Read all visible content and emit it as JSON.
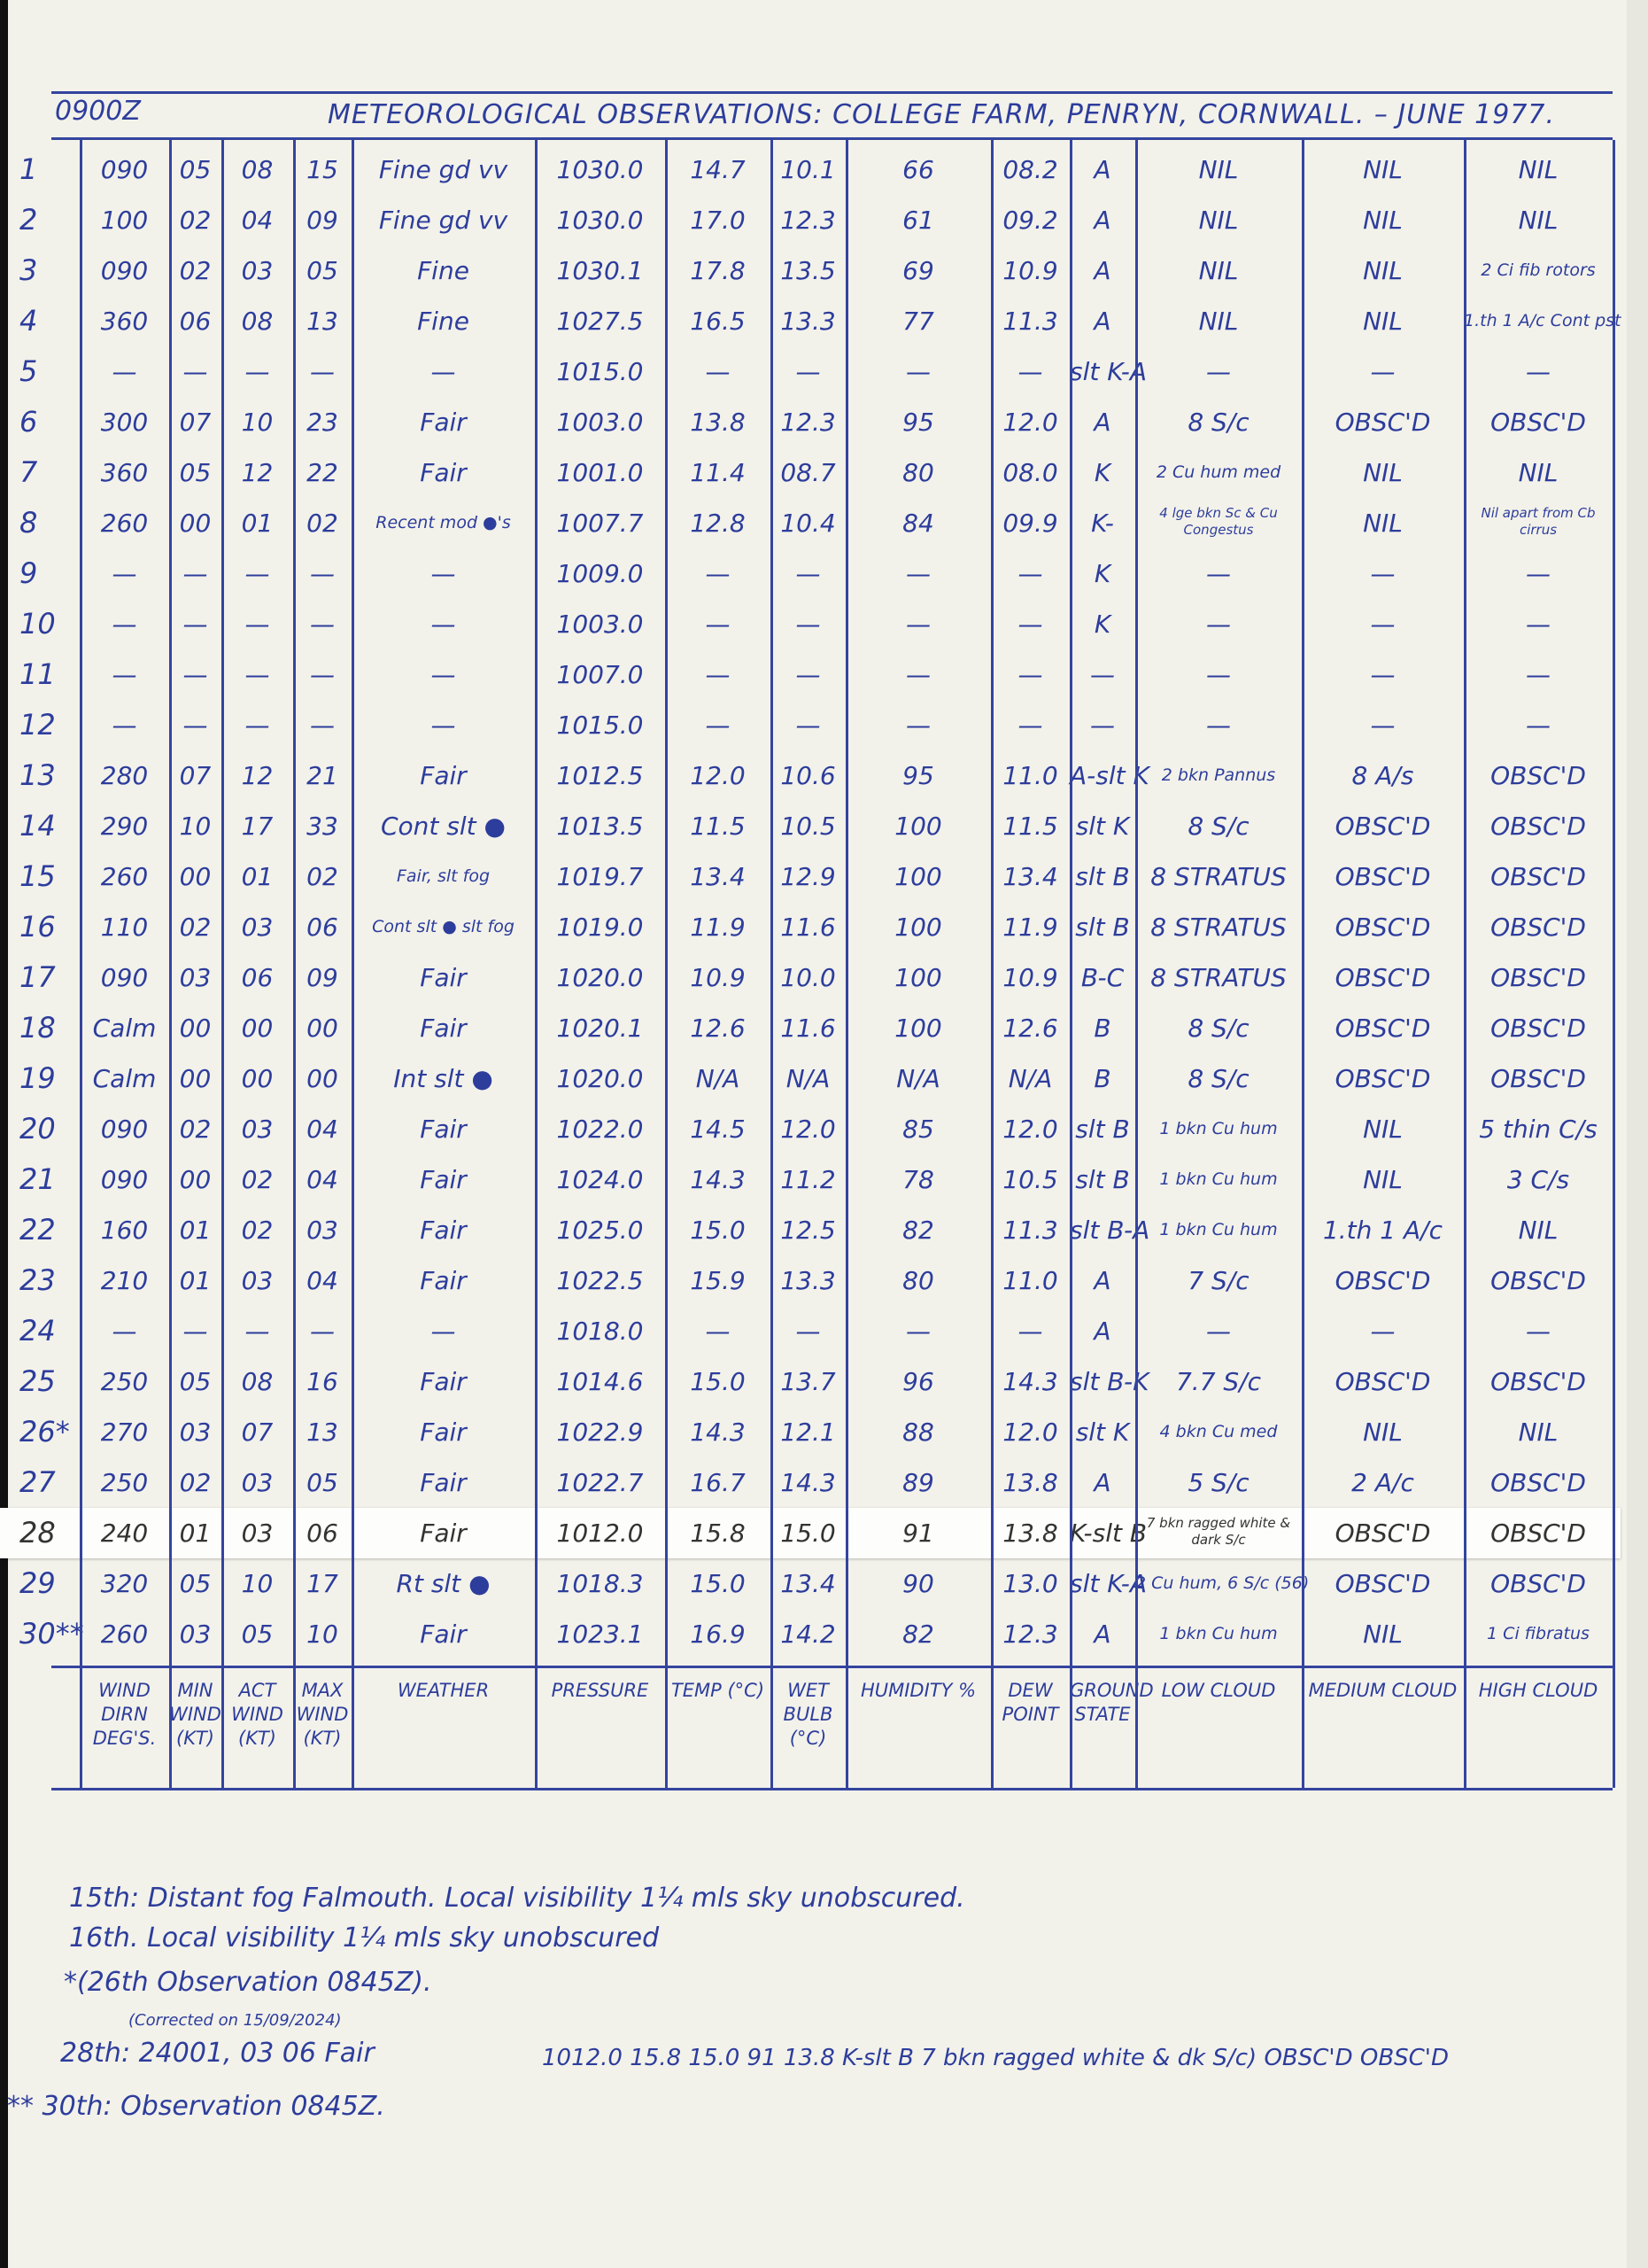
{
  "header": {
    "time": "0900Z",
    "title": "METEOROLOGICAL OBSERVATIONS: COLLEGE FARM, PENRYN, CORNWALL. – JUNE 1977."
  },
  "columns": [
    "WIND DIRN DEG'S.",
    "MIN WIND (KT)",
    "ACT WIND (KT)",
    "MAX WIND (KT)",
    "WEATHER",
    "PRESSURE",
    "TEMP (°C)",
    "WET BULB (°C)",
    "HUMIDITY %",
    "DEW POINT",
    "GROUND STATE",
    "LOW CLOUD",
    "MEDIUM CLOUD",
    "HIGH CLOUD"
  ],
  "rows": [
    [
      "1",
      "090",
      "05",
      "08",
      "15",
      "Fine gd vv",
      "1030.0",
      "14.7",
      "10.1",
      "66",
      "08.2",
      "A",
      "NIL",
      "NIL",
      "NIL"
    ],
    [
      "2",
      "100",
      "02",
      "04",
      "09",
      "Fine gd vv",
      "1030.0",
      "17.0",
      "12.3",
      "61",
      "09.2",
      "A",
      "NIL",
      "NIL",
      "NIL"
    ],
    [
      "3",
      "090",
      "02",
      "03",
      "05",
      "Fine",
      "1030.1",
      "17.8",
      "13.5",
      "69",
      "10.9",
      "A",
      "NIL",
      "NIL",
      "2 Ci fib rotors"
    ],
    [
      "4",
      "360",
      "06",
      "08",
      "13",
      "Fine",
      "1027.5",
      "16.5",
      "13.3",
      "77",
      "11.3",
      "A",
      "NIL",
      "NIL",
      "1.th 1 A/c Cont pst"
    ],
    [
      "5",
      "—",
      "—",
      "—",
      "—",
      "—",
      "1015.0",
      "—",
      "—",
      "—",
      "—",
      "slt K-A",
      "—",
      "—",
      "—"
    ],
    [
      "6",
      "300",
      "07",
      "10",
      "23",
      "Fair",
      "1003.0",
      "13.8",
      "12.3",
      "95",
      "12.0",
      "A",
      "8 S/c",
      "OBSC'D",
      "OBSC'D"
    ],
    [
      "7",
      "360",
      "05",
      "12",
      "22",
      "Fair",
      "1001.0",
      "11.4",
      "08.7",
      "80",
      "08.0",
      "K",
      "2 Cu hum med",
      "NIL",
      "NIL"
    ],
    [
      "8",
      "260",
      "00",
      "01",
      "02",
      "Recent mod ●'s",
      "1007.7",
      "12.8",
      "10.4",
      "84",
      "09.9",
      "K-",
      "4 lge bkn Sc & Cu Congestus",
      "NIL",
      "Nil apart from Cb cirrus"
    ],
    [
      "9",
      "—",
      "—",
      "—",
      "—",
      "—",
      "1009.0",
      "—",
      "—",
      "—",
      "—",
      "K",
      "—",
      "—",
      "—"
    ],
    [
      "10",
      "—",
      "—",
      "—",
      "—",
      "—",
      "1003.0",
      "—",
      "—",
      "—",
      "—",
      "K",
      "—",
      "—",
      "—"
    ],
    [
      "11",
      "—",
      "—",
      "—",
      "—",
      "—",
      "1007.0",
      "—",
      "—",
      "—",
      "—",
      "—",
      "—",
      "—",
      "—"
    ],
    [
      "12",
      "—",
      "—",
      "—",
      "—",
      "—",
      "1015.0",
      "—",
      "—",
      "—",
      "—",
      "—",
      "—",
      "—",
      "—"
    ],
    [
      "13",
      "280",
      "07",
      "12",
      "21",
      "Fair",
      "1012.5",
      "12.0",
      "10.6",
      "95",
      "11.0",
      "A-slt K",
      "2 bkn Pannus",
      "8 A/s",
      "OBSC'D"
    ],
    [
      "14",
      "290",
      "10",
      "17",
      "33",
      "Cont slt ●",
      "1013.5",
      "11.5",
      "10.5",
      "100",
      "11.5",
      "slt K",
      "8 S/c",
      "OBSC'D",
      "OBSC'D"
    ],
    [
      "15",
      "260",
      "00",
      "01",
      "02",
      "Fair, slt fog",
      "1019.7",
      "13.4",
      "12.9",
      "100",
      "13.4",
      "slt B",
      "8 STRATUS",
      "OBSC'D",
      "OBSC'D"
    ],
    [
      "16",
      "110",
      "02",
      "03",
      "06",
      "Cont slt ● slt fog",
      "1019.0",
      "11.9",
      "11.6",
      "100",
      "11.9",
      "slt B",
      "8 STRATUS",
      "OBSC'D",
      "OBSC'D"
    ],
    [
      "17",
      "090",
      "03",
      "06",
      "09",
      "Fair",
      "1020.0",
      "10.9",
      "10.0",
      "100",
      "10.9",
      "B-C",
      "8 STRATUS",
      "OBSC'D",
      "OBSC'D"
    ],
    [
      "18",
      "Calm",
      "00",
      "00",
      "00",
      "Fair",
      "1020.1",
      "12.6",
      "11.6",
      "100",
      "12.6",
      "B",
      "8 S/c",
      "OBSC'D",
      "OBSC'D"
    ],
    [
      "19",
      "Calm",
      "00",
      "00",
      "00",
      "Int slt ●",
      "1020.0",
      "N/A",
      "N/A",
      "N/A",
      "N/A",
      "B",
      "8 S/c",
      "OBSC'D",
      "OBSC'D"
    ],
    [
      "20",
      "090",
      "02",
      "03",
      "04",
      "Fair",
      "1022.0",
      "14.5",
      "12.0",
      "85",
      "12.0",
      "slt B",
      "1 bkn Cu hum",
      "NIL",
      "5 thin C/s"
    ],
    [
      "21",
      "090",
      "00",
      "02",
      "04",
      "Fair",
      "1024.0",
      "14.3",
      "11.2",
      "78",
      "10.5",
      "slt B",
      "1 bkn Cu hum",
      "NIL",
      "3 C/s"
    ],
    [
      "22",
      "160",
      "01",
      "02",
      "03",
      "Fair",
      "1025.0",
      "15.0",
      "12.5",
      "82",
      "11.3",
      "slt B-A",
      "1 bkn Cu hum",
      "1.th 1 A/c",
      "NIL"
    ],
    [
      "23",
      "210",
      "01",
      "03",
      "04",
      "Fair",
      "1022.5",
      "15.9",
      "13.3",
      "80",
      "11.0",
      "A",
      "7 S/c",
      "OBSC'D",
      "OBSC'D"
    ],
    [
      "24",
      "—",
      "—",
      "—",
      "—",
      "—",
      "1018.0",
      "—",
      "—",
      "—",
      "—",
      "A",
      "—",
      "—",
      "—"
    ],
    [
      "25",
      "250",
      "05",
      "08",
      "16",
      "Fair",
      "1014.6",
      "15.0",
      "13.7",
      "96",
      "14.3",
      "slt B-K",
      "7.7 S/c",
      "OBSC'D",
      "OBSC'D"
    ],
    [
      "26*",
      "270",
      "03",
      "07",
      "13",
      "Fair",
      "1022.9",
      "14.3",
      "12.1",
      "88",
      "12.0",
      "slt K",
      "4 bkn Cu med",
      "NIL",
      "NIL"
    ],
    [
      "27",
      "250",
      "02",
      "03",
      "05",
      "Fair",
      "1022.7",
      "16.7",
      "14.3",
      "89",
      "13.8",
      "A",
      "5 S/c",
      "2 A/c",
      "OBSC'D"
    ],
    [
      "28",
      "240",
      "01",
      "03",
      "06",
      "Fair",
      "1012.0",
      "15.8",
      "15.0",
      "91",
      "13.8",
      "K-slt B",
      "7 bkn ragged white & dark S/c",
      "OBSC'D",
      "OBSC'D"
    ],
    [
      "29",
      "320",
      "05",
      "10",
      "17",
      "Rt slt ●",
      "1018.3",
      "15.0",
      "13.4",
      "90",
      "13.0",
      "slt K-A",
      "2 Cu hum, 6 S/c (56)",
      "OBSC'D",
      "OBSC'D"
    ],
    [
      "30**",
      "260",
      "03",
      "05",
      "10",
      "Fair",
      "1023.1",
      "16.9",
      "14.2",
      "82",
      "12.3",
      "A",
      "1 bkn Cu hum",
      "NIL",
      "1 Ci fibratus"
    ]
  ],
  "notes": {
    "line1": "15th: Distant fog Falmouth.   Local visibility 1¼ mls sky unobscured.",
    "line2": "16th. Local visibility 1¼ mls sky unobscured",
    "line3": "*(26th Observation 0845Z).",
    "correction": "(Corrected on 15/09/2024)",
    "line4_left": "28th: 24001, 03 06  Fair",
    "line4_right": "1012.0   15.8  15.0  91    13.8   K-slt B  7 bkn ragged white & dk S/c)  OBSC'D  OBSC'D",
    "line5": "** 30th: Observation 0845Z."
  },
  "colors": {
    "ink": "#2d3d9c",
    "paper": "#f3f2ea"
  }
}
